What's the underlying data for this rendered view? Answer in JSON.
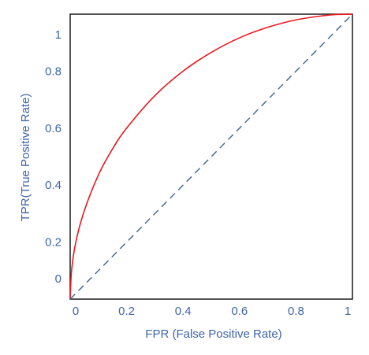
{
  "chart_data": {
    "type": "line",
    "xlabel": "FPR (False Positive Rate)",
    "ylabel": "TPR(True Positive Rate)",
    "xlim": [
      0,
      1
    ],
    "ylim": [
      0,
      1
    ],
    "x_ticks": [
      {
        "value": 0,
        "label": "0"
      },
      {
        "value": 0.2,
        "label": "0.2"
      },
      {
        "value": 0.4,
        "label": "0.4"
      },
      {
        "value": 0.6,
        "label": "0.6"
      },
      {
        "value": 0.8,
        "label": "0.8"
      },
      {
        "value": 1,
        "label": "1"
      }
    ],
    "y_ticks": [
      {
        "value": 0,
        "label": "0"
      },
      {
        "value": 0.2,
        "label": "0.2"
      },
      {
        "value": 0.4,
        "label": "0.4"
      },
      {
        "value": 0.6,
        "label": "0.6"
      },
      {
        "value": 0.8,
        "label": "0.8"
      },
      {
        "value": 1,
        "label": "1"
      }
    ],
    "grid": false,
    "series": [
      {
        "color": "#e8191f",
        "line_style": "solid",
        "x": [
          0,
          0.005,
          0.02,
          0.05,
          0.1,
          0.15,
          0.2,
          0.3,
          0.4,
          0.5,
          0.6,
          0.7,
          0.8,
          0.9,
          0.95,
          1
        ],
        "y": [
          0,
          0.1,
          0.2,
          0.31,
          0.436,
          0.527,
          0.6,
          0.714,
          0.8,
          0.866,
          0.917,
          0.954,
          0.98,
          0.995,
          0.999,
          1
        ]
      },
      {
        "color": "#4a6d96",
        "line_style": "dashed",
        "x": [
          0,
          1
        ],
        "y": [
          0,
          1
        ]
      }
    ],
    "text_color": "#3f65a8",
    "frame_color": "#1a1a1a"
  }
}
